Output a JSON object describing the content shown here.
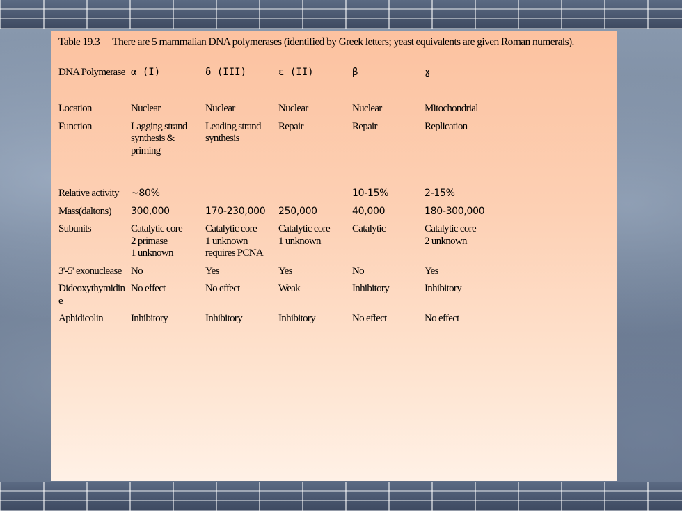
{
  "caption": {
    "label": "Table 19.3",
    "text": "There are 5 mammalian DNA polymerases (identified by Greek letters; yeast equivalents are given Roman numerals)."
  },
  "table": {
    "header": [
      "DNA Polymerase",
      "α (I)",
      "δ (III)",
      "ε (II)",
      "β",
      "ɣ"
    ],
    "rows": [
      {
        "label": "Location",
        "cells": [
          "Nuclear",
          "Nuclear",
          "Nuclear",
          "Nuclear",
          "Mitochondrial"
        ]
      },
      {
        "label": "Function",
        "cells": [
          "Lagging strand synthesis & priming",
          "Leading strand synthesis",
          "Repair",
          "Repair",
          "Replication"
        ]
      },
      {
        "label": "Relative activity",
        "cells": [
          "~80%",
          "",
          "",
          "10-15%",
          "2-15%"
        ]
      },
      {
        "label": "Mass(daltons)",
        "cells": [
          "300,000",
          "170-230,000",
          "250,000",
          "40,000",
          "180-300,000"
        ]
      },
      {
        "label": "Subunits",
        "cells": [
          "Catalytic core\n2 primase\n1 unknown",
          "Catalytic core\n1 unknown\nrequires PCNA",
          "Catalytic core\n1 unknown",
          "Catalytic",
          "Catalytic core\n2 unknown"
        ]
      },
      {
        "label": "3'-5' exonuclease",
        "cells": [
          "No",
          "Yes",
          "Yes",
          "No",
          "Yes"
        ]
      },
      {
        "label": "Dideoxythymidine",
        "cells": [
          "No effect",
          "No effect",
          "Weak",
          "Inhibitory",
          "Inhibitory"
        ]
      },
      {
        "label": "Aphidicolin",
        "cells": [
          "Inhibitory",
          "Inhibitory",
          "Inhibitory",
          "No effect",
          "No effect"
        ]
      }
    ]
  }
}
